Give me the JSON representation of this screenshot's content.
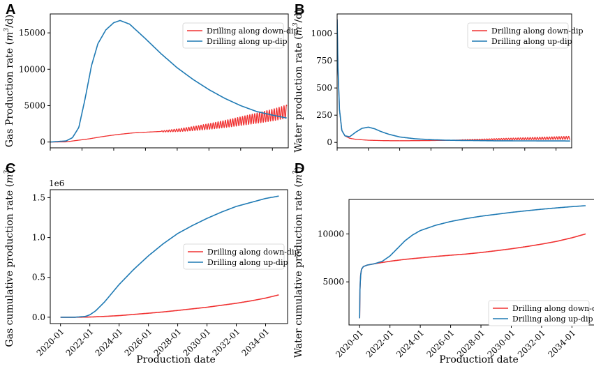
{
  "colors": {
    "down_dip": "#f03232",
    "up_dip": "#1f7ab4"
  },
  "chart_data": [
    {
      "panel": "A",
      "type": "line",
      "title": "",
      "xlabel": "",
      "ylabel": "Gas Production rate (m3/d)",
      "ylabel_parts": {
        "pre": "Gas Production rate (",
        "var": "m",
        "sup": "3",
        "post": "/d)"
      },
      "xlim": [
        2020.0,
        2035.0
      ],
      "ylim": [
        -800,
        17600
      ],
      "yticks": [
        0,
        5000,
        10000,
        15000
      ],
      "xticks": [],
      "legend": {
        "position": "top-right",
        "entries": [
          "Drilling along down-dip",
          "Drilling along up-dip"
        ]
      },
      "series": [
        {
          "name": "Drilling along down-dip",
          "x": [
            2020.0,
            2021.0,
            2021.6,
            2022.4,
            2023.3,
            2024.2,
            2025.2,
            2026.2,
            2027.2,
            2028.2,
            2029.2,
            2030.2,
            2031.2,
            2032.2,
            2033.2,
            2034.2,
            2034.9
          ],
          "y": [
            0,
            20,
            200,
            420,
            750,
            1020,
            1250,
            1370,
            1480,
            1650,
            1900,
            2200,
            2550,
            2950,
            3350,
            3800,
            4200
          ],
          "oscillation_start": 2027.0,
          "oscillation_amp_start": 80,
          "oscillation_amp_end": 900
        },
        {
          "name": "Drilling along up-dip",
          "x": [
            2020.0,
            2021.0,
            2021.4,
            2021.8,
            2022.2,
            2022.6,
            2023.0,
            2023.5,
            2024.0,
            2024.4,
            2025.0,
            2026.0,
            2027.0,
            2028.0,
            2029.0,
            2030.0,
            2031.0,
            2032.0,
            2033.0,
            2034.0,
            2034.9
          ],
          "y": [
            0,
            150,
            600,
            2000,
            6000,
            10500,
            13500,
            15400,
            16400,
            16700,
            16200,
            14200,
            12100,
            10200,
            8600,
            7200,
            6000,
            5000,
            4200,
            3700,
            3300
          ]
        }
      ]
    },
    {
      "panel": "B",
      "type": "line",
      "title": "",
      "xlabel": "",
      "ylabel": "Water production rate (m3/d)",
      "ylabel_parts": {
        "pre": "Water production rate (",
        "var": "m",
        "sup": "3",
        "post": "/d)"
      },
      "xlim": [
        2020.0,
        2035.0
      ],
      "ylim": [
        -50,
        1180
      ],
      "yticks": [
        0,
        250,
        500,
        750,
        1000
      ],
      "xticks": [],
      "legend": {
        "position": "top-right",
        "entries": [
          "Drilling along down-dip",
          "Drilling along up-dip"
        ]
      },
      "series": [
        {
          "name": "Drilling along down-dip",
          "x": [
            2020.0,
            2020.05,
            2020.15,
            2020.3,
            2020.5,
            2020.8,
            2021.2,
            2022.0,
            2023.0,
            2024.0,
            2025.0,
            2026.0,
            2027.0,
            2028.0,
            2029.0,
            2030.0,
            2031.0,
            2032.0,
            2033.0,
            2034.0,
            2034.9
          ],
          "y": [
            1130,
            700,
            300,
            110,
            60,
            38,
            28,
            20,
            16,
            15,
            16,
            17,
            19,
            22,
            25,
            28,
            31,
            34,
            37,
            40,
            42
          ],
          "oscillation_start": 2028.0,
          "oscillation_amp_start": 3,
          "oscillation_amp_end": 14
        },
        {
          "name": "Drilling along up-dip",
          "x": [
            2020.0,
            2020.05,
            2020.15,
            2020.3,
            2020.5,
            2020.8,
            2021.2,
            2021.6,
            2022.0,
            2022.4,
            2022.8,
            2023.3,
            2024.0,
            2025.0,
            2026.0,
            2027.0,
            2028.0,
            2030.0,
            2032.0,
            2034.9
          ],
          "y": [
            1130,
            700,
            300,
            110,
            60,
            52,
            95,
            130,
            140,
            125,
            100,
            75,
            50,
            33,
            25,
            20,
            18,
            15,
            14,
            13
          ]
        }
      ]
    },
    {
      "panel": "C",
      "type": "line",
      "title": "",
      "xlabel": "Production date",
      "ylabel": "Gas cumulative production rate (m3)",
      "ylabel_parts": {
        "pre": "Gas cumulative production rate (",
        "var": "m",
        "sup": "3",
        "post": ")"
      },
      "offset_text": "1e6",
      "xlim": [
        2019.3,
        2035.5
      ],
      "ylim": [
        -0.08,
        1.6
      ],
      "yticks": [
        0.0,
        0.5,
        1.0,
        1.5
      ],
      "ytick_labels": [
        "0.0",
        "0.5",
        "1.0",
        "1.5"
      ],
      "xticks": [
        2020.0,
        2022.0,
        2024.0,
        2026.0,
        2028.0,
        2030.0,
        2032.0,
        2034.0
      ],
      "xtick_labels": [
        "2020-01",
        "2022-01",
        "2024-01",
        "2026-01",
        "2028-01",
        "2030-01",
        "2032-01",
        "2034-01"
      ],
      "legend": {
        "position": "center-right",
        "entries": [
          "Drilling along down-dip",
          "Drilling along up-dip"
        ]
      },
      "series": [
        {
          "name": "Drilling along down-dip",
          "x": [
            2020.0,
            2021.0,
            2022.0,
            2023.0,
            2024.0,
            2025.0,
            2026.0,
            2027.0,
            2028.0,
            2029.0,
            2030.0,
            2031.0,
            2032.0,
            2033.0,
            2034.0,
            2034.9
          ],
          "y": [
            0.0,
            0.0,
            0.002,
            0.01,
            0.02,
            0.035,
            0.05,
            0.066,
            0.085,
            0.105,
            0.125,
            0.15,
            0.175,
            0.205,
            0.24,
            0.28
          ]
        },
        {
          "name": "Drilling along up-dip",
          "x": [
            2020.0,
            2021.0,
            2021.7,
            2022.0,
            2022.4,
            2023.0,
            2023.5,
            2024.0,
            2025.0,
            2026.0,
            2027.0,
            2028.0,
            2029.0,
            2030.0,
            2031.0,
            2032.0,
            2033.0,
            2034.0,
            2034.9
          ],
          "y": [
            0.0,
            0.0,
            0.01,
            0.03,
            0.08,
            0.19,
            0.3,
            0.41,
            0.6,
            0.77,
            0.92,
            1.05,
            1.15,
            1.24,
            1.32,
            1.39,
            1.44,
            1.49,
            1.52
          ]
        }
      ]
    },
    {
      "panel": "D",
      "type": "line",
      "title": "",
      "xlabel": "Production date",
      "ylabel": "Water cumulative production rate (m3)",
      "ylabel_parts": {
        "pre": "Water cumulative production rate (",
        "var": "m",
        "sup": "3",
        "post": ")"
      },
      "xlim": [
        2019.3,
        2035.5
      ],
      "ylim": [
        500,
        13600
      ],
      "yticks": [
        5000,
        10000
      ],
      "ytick_labels": [
        "5000",
        "10000"
      ],
      "xticks": [
        2020.0,
        2022.0,
        2024.0,
        2026.0,
        2028.0,
        2030.0,
        2032.0,
        2034.0
      ],
      "xtick_labels": [
        "2020-01",
        "2022-01",
        "2024-01",
        "2026-01",
        "2028-01",
        "2030-01",
        "2032-01",
        "2034-01"
      ],
      "legend": {
        "position": "bottom-right",
        "entries": [
          "Drilling along down-dip",
          "Drilling along up-dip"
        ]
      },
      "series": [
        {
          "name": "Drilling along down-dip",
          "x": [
            2020.0,
            2020.02,
            2020.06,
            2020.12,
            2020.25,
            2020.5,
            2021.0,
            2022.0,
            2023.0,
            2024.0,
            2025.0,
            2026.0,
            2027.0,
            2028.0,
            2029.0,
            2030.0,
            2031.0,
            2032.0,
            2033.0,
            2034.0,
            2034.9
          ],
          "y": [
            1200,
            4000,
            5600,
            6300,
            6600,
            6750,
            6900,
            7150,
            7350,
            7500,
            7650,
            7780,
            7900,
            8060,
            8250,
            8450,
            8680,
            8940,
            9230,
            9600,
            10000
          ]
        },
        {
          "name": "Drilling along up-dip",
          "x": [
            2020.0,
            2020.02,
            2020.06,
            2020.12,
            2020.25,
            2020.5,
            2021.0,
            2021.5,
            2022.0,
            2022.5,
            2023.0,
            2023.5,
            2024.0,
            2025.0,
            2026.0,
            2027.0,
            2028.0,
            2029.0,
            2030.0,
            2031.0,
            2032.0,
            2033.0,
            2034.0,
            2034.9
          ],
          "y": [
            1200,
            4000,
            5600,
            6300,
            6600,
            6750,
            6900,
            7150,
            7700,
            8500,
            9300,
            9900,
            10350,
            10900,
            11300,
            11600,
            11850,
            12050,
            12250,
            12420,
            12580,
            12720,
            12850,
            12950
          ]
        }
      ]
    }
  ]
}
